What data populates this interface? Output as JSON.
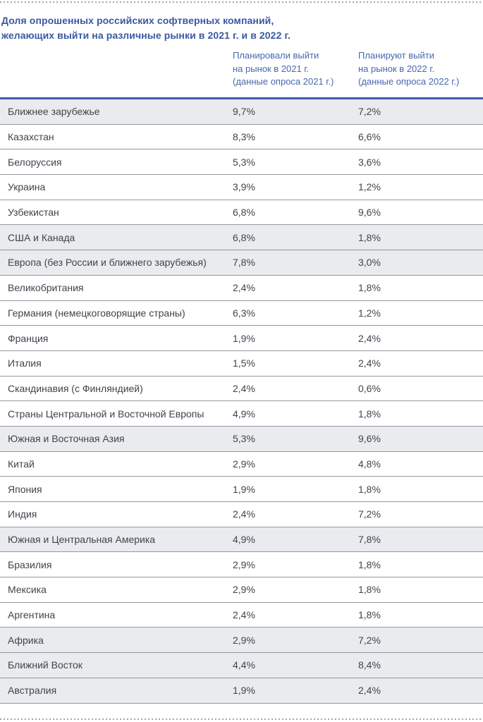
{
  "title": {
    "line1": "Доля опрошенных российских софтверных компаний,",
    "line2": "желающих выйти на различные рынки в 2021 г. и в 2022 г."
  },
  "columns": [
    {
      "lines": [
        "Планировали выйти",
        "на рынок в 2021 г.",
        "(данные опроса 2021 г.)"
      ]
    },
    {
      "lines": [
        "Планируют выйти",
        "на рынок в 2022 г.",
        "(данные опроса 2022 г.)"
      ]
    }
  ],
  "rows": [
    {
      "label": "Ближнее зарубежье",
      "v2021": "9,7%",
      "v2022": "7,2%",
      "shaded": true
    },
    {
      "label": "Казахстан",
      "v2021": "8,3%",
      "v2022": "6,6%",
      "shaded": false
    },
    {
      "label": "Белоруссия",
      "v2021": "5,3%",
      "v2022": "3,6%",
      "shaded": false
    },
    {
      "label": "Украина",
      "v2021": "3,9%",
      "v2022": "1,2%",
      "shaded": false
    },
    {
      "label": "Узбекистан",
      "v2021": "6,8%",
      "v2022": "9,6%",
      "shaded": false
    },
    {
      "label": "США и Канада",
      "v2021": "6,8%",
      "v2022": "1,8%",
      "shaded": true
    },
    {
      "label": "Европа (без России и ближнего зарубежья)",
      "v2021": "7,8%",
      "v2022": "3,0%",
      "shaded": true
    },
    {
      "label": "Великобритания",
      "v2021": "2,4%",
      "v2022": "1,8%",
      "shaded": false
    },
    {
      "label": "Германия (немецкоговорящие страны)",
      "v2021": "6,3%",
      "v2022": "1,2%",
      "shaded": false
    },
    {
      "label": "Франция",
      "v2021": "1,9%",
      "v2022": "2,4%",
      "shaded": false
    },
    {
      "label": "Италия",
      "v2021": "1,5%",
      "v2022": "2,4%",
      "shaded": false
    },
    {
      "label": "Скандинавия (с Финляндией)",
      "v2021": "2,4%",
      "v2022": "0,6%",
      "shaded": false
    },
    {
      "label": "Страны Центральной и Восточной Европы",
      "v2021": "4,9%",
      "v2022": "1,8%",
      "shaded": false
    },
    {
      "label": "Южная и Восточная Азия",
      "v2021": "5,3%",
      "v2022": "9,6%",
      "shaded": true
    },
    {
      "label": "Китай",
      "v2021": "2,9%",
      "v2022": "4,8%",
      "shaded": false
    },
    {
      "label": "Япония",
      "v2021": "1,9%",
      "v2022": "1,8%",
      "shaded": false
    },
    {
      "label": "Индия",
      "v2021": "2,4%",
      "v2022": "7,2%",
      "shaded": false
    },
    {
      "label": "Южная и Центральная Америка",
      "v2021": "4,9%",
      "v2022": "7,8%",
      "shaded": true
    },
    {
      "label": "Бразилия",
      "v2021": "2,9%",
      "v2022": "1,8%",
      "shaded": false
    },
    {
      "label": "Мексика",
      "v2021": "2,9%",
      "v2022": "1,8%",
      "shaded": false
    },
    {
      "label": "Аргентина",
      "v2021": "2,4%",
      "v2022": "1,8%",
      "shaded": false
    },
    {
      "label": "Африка",
      "v2021": "2,9%",
      "v2022": "7,2%",
      "shaded": true
    },
    {
      "label": "Ближний Восток",
      "v2021": "4,4%",
      "v2022": "8,4%",
      "shaded": true
    },
    {
      "label": "Австралия",
      "v2021": "1,9%",
      "v2022": "2,4%",
      "shaded": true
    }
  ],
  "colors": {
    "accent": "#3d5ca8",
    "title-blue": "#3a57a5",
    "header-blue": "#4767ae",
    "text-dark": "#3f444b",
    "divider": "#94989c",
    "row-shade": "#e9ebee",
    "dotted": "#a2a7ab",
    "page-bg": "#ffffff"
  }
}
